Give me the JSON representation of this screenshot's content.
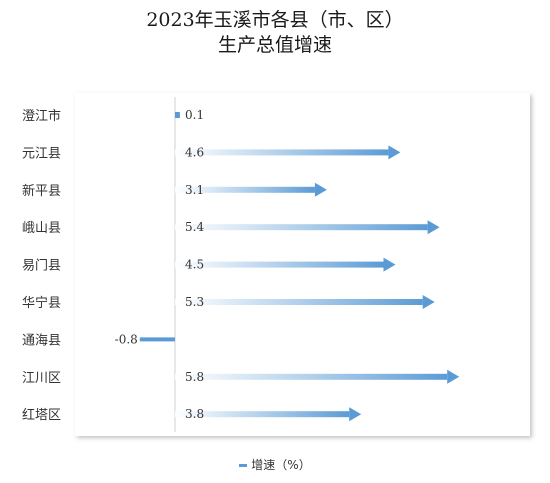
{
  "chart_data": {
    "type": "bar",
    "title": "2023年玉溪市各县（市、区）",
    "subtitle": "生产总值增速",
    "categories": [
      "澄江市",
      "元江县",
      "新平县",
      "峨山县",
      "易门县",
      "华宁县",
      "通海县",
      "江川区",
      "红塔区"
    ],
    "series": [
      {
        "name": "增速（%）",
        "values": [
          0.1,
          4.6,
          3.1,
          5.4,
          4.5,
          5.3,
          -0.8,
          5.8,
          3.8
        ]
      }
    ],
    "xlim": [
      -0.8,
      5.8
    ],
    "orientation": "horizontal",
    "legend": "bottom",
    "grid": false,
    "colors": {
      "bar": "#5b9bd5"
    }
  }
}
